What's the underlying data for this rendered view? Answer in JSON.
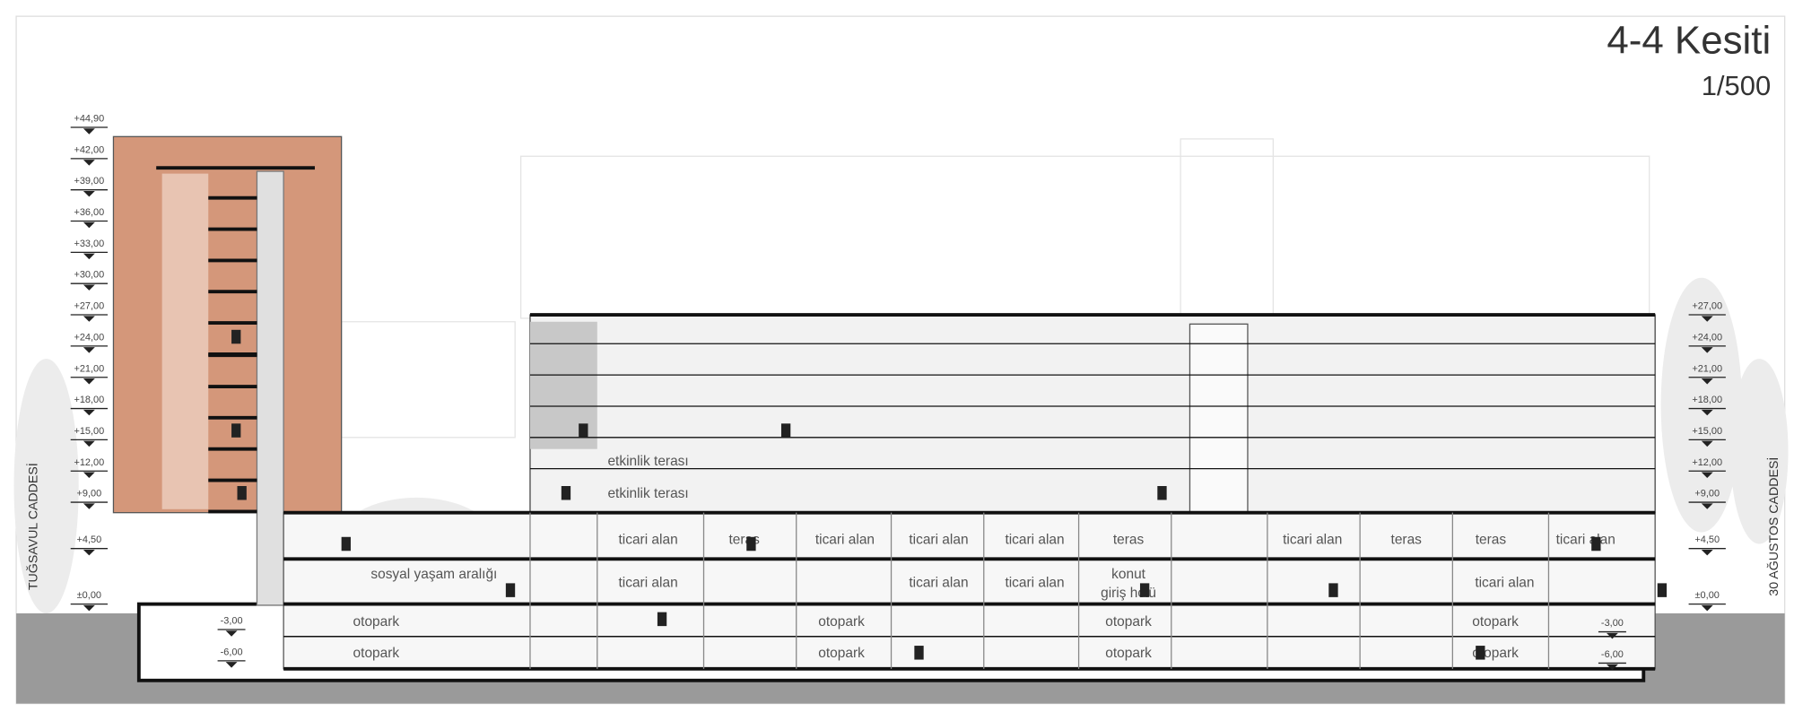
{
  "header": {
    "title": "4-4 Kesiti",
    "scale": "1/500"
  },
  "streets": {
    "left": "TUĞSAVUL CADDESİ",
    "right": "30 AĞUSTOS CADDESİ"
  },
  "levels_left": [
    "+44,90",
    "+42,00",
    "+39,00",
    "+36,00",
    "+33,00",
    "+30,00",
    "+27,00",
    "+24,00",
    "+21,00",
    "+18,00",
    "+15,00",
    "+12,00",
    "+9,00",
    "+4,50",
    "±0,00"
  ],
  "levels_basement_left": [
    "-3,00",
    "-6,00"
  ],
  "levels_right": [
    "+27,00",
    "+24,00",
    "+21,00",
    "+18,00",
    "+15,00",
    "+12,00",
    "+9,00",
    "+4,50",
    "±0,00",
    "-3,00",
    "-6,00"
  ],
  "spaces": [
    "etkinlik terası",
    "etkinlik terası",
    "ticari alan",
    "teras",
    "ticari alan",
    "ticari alan",
    "ticari alan",
    "teras",
    "ticari alan",
    "teras",
    "teras",
    "ticari alan",
    "sosyal yaşam aralığı",
    "ticari alan",
    "ticari alan",
    "ticari alan",
    "konut",
    "giriş holü",
    "ticari alan",
    "otopark",
    "otopark",
    "otopark",
    "otopark",
    "otopark",
    "otopark",
    "otopark",
    "otopark"
  ]
}
